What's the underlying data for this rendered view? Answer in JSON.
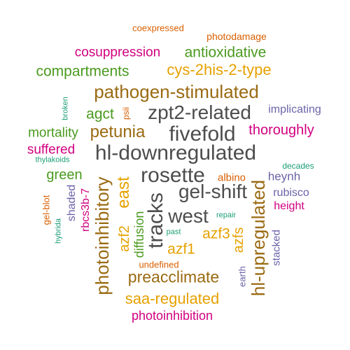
{
  "colors": {
    "orange": "#d95f02",
    "green": "#4a9a1f",
    "gold": "#e6a100",
    "brown": "#9a6a12",
    "dark": "#4d4d4d",
    "purple": "#6a63a8",
    "magenta": "#d1007f",
    "teal": "#1b9e77"
  },
  "words": [
    {
      "id": "coexpressed",
      "text": "coexpressed"
    },
    {
      "id": "photodamage",
      "text": "photodamage"
    },
    {
      "id": "cosuppression",
      "text": "cosuppression"
    },
    {
      "id": "antioxidative",
      "text": "antioxidative"
    },
    {
      "id": "compartments",
      "text": "compartments"
    },
    {
      "id": "cys-2his-2-type",
      "text": "cys-2his-2-type"
    },
    {
      "id": "pathogen-stimulated",
      "text": "pathogen-stimulated"
    },
    {
      "id": "broken",
      "text": "broken"
    },
    {
      "id": "psii",
      "text": "psii"
    },
    {
      "id": "agct",
      "text": "agct"
    },
    {
      "id": "zpt2-related",
      "text": "zpt2-related"
    },
    {
      "id": "implicating",
      "text": "implicating"
    },
    {
      "id": "mortality",
      "text": "mortality"
    },
    {
      "id": "petunia",
      "text": "petunia"
    },
    {
      "id": "fivefold",
      "text": "fivefold"
    },
    {
      "id": "thoroughly",
      "text": "thoroughly"
    },
    {
      "id": "suffered",
      "text": "suffered"
    },
    {
      "id": "hl-downregulated",
      "text": "hl-downregulated"
    },
    {
      "id": "thylakoids",
      "text": "thylakoids"
    },
    {
      "id": "decades",
      "text": "decades"
    },
    {
      "id": "green",
      "text": "green"
    },
    {
      "id": "rosette",
      "text": "rosette"
    },
    {
      "id": "albino",
      "text": "albino"
    },
    {
      "id": "heynh",
      "text": "heynh"
    },
    {
      "id": "east",
      "text": "east"
    },
    {
      "id": "gel-blot",
      "text": "gel-blot"
    },
    {
      "id": "shaded",
      "text": "shaded"
    },
    {
      "id": "rbcs3b-7",
      "text": "rbcs3b-7"
    },
    {
      "id": "photoinhibitory",
      "text": "photoinhibitory"
    },
    {
      "id": "azf2",
      "text": "azf2"
    },
    {
      "id": "tracks",
      "text": "tracks"
    },
    {
      "id": "gel-shift",
      "text": "gel-shift"
    },
    {
      "id": "rubisco",
      "text": "rubisco"
    },
    {
      "id": "height",
      "text": "height"
    },
    {
      "id": "hl-upregulated",
      "text": "hl-upregulated"
    },
    {
      "id": "west",
      "text": "west"
    },
    {
      "id": "repair",
      "text": "repair"
    },
    {
      "id": "hybrida",
      "text": "hybrida"
    },
    {
      "id": "diffusion",
      "text": "diffusion"
    },
    {
      "id": "past",
      "text": "past"
    },
    {
      "id": "azf3",
      "text": "azf3"
    },
    {
      "id": "azfs",
      "text": "azfs"
    },
    {
      "id": "stacked",
      "text": "stacked"
    },
    {
      "id": "azf1",
      "text": "azf1"
    },
    {
      "id": "undefined",
      "text": "undefined"
    },
    {
      "id": "earth",
      "text": "earth"
    },
    {
      "id": "preacclimate",
      "text": "preacclimate"
    },
    {
      "id": "saa-regulated",
      "text": "saa-regulated"
    },
    {
      "id": "photoinhibition",
      "text": "photoinhibition"
    }
  ]
}
